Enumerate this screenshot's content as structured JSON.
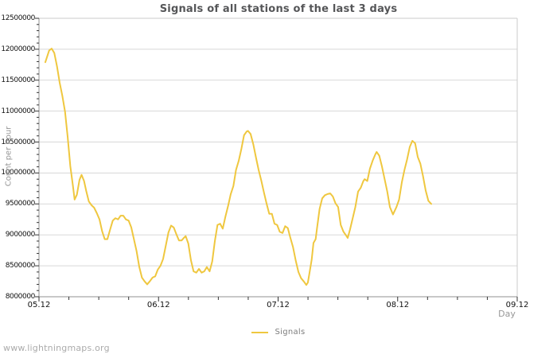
{
  "title": "Signals of all stations of the last 3 days",
  "watermark": "www.lightningmaps.org",
  "legend": {
    "label": "Signals"
  },
  "colors": {
    "series": "#EFC73F",
    "grid": "#d8d8d8",
    "axis_dark": "#909090",
    "axis_light": "#cbcbcb",
    "tick": "#333333",
    "title_text": "#555658",
    "muted_text": "#979797",
    "watermark_text": "#ababab"
  },
  "chart_data": {
    "type": "line",
    "title": "Signals of all stations of the last 3 days",
    "xlabel": "Day",
    "ylabel": "Count per hour",
    "legend_position": "bottom-center",
    "grid": "horizontal-only",
    "ylim": [
      8000000,
      12500000
    ],
    "y_major_step": 500000,
    "y_minor_step": 100000,
    "y_tick_labels": [
      "8000000",
      "8500000",
      "9000000",
      "9500000",
      "10000000",
      "10500000",
      "11000000",
      "11500000",
      "12000000",
      "12500000"
    ],
    "xlim_days": [
      0,
      4
    ],
    "x_major_step": 1,
    "x_minor_step": 0.25,
    "x_tick_labels": [
      "05.12",
      "06.12",
      "07.12",
      "08.12",
      "09.12"
    ],
    "series": [
      {
        "name": "Signals",
        "color": "#EFC73F",
        "points": [
          [
            0.053,
            11790000
          ],
          [
            0.085,
            11980000
          ],
          [
            0.106,
            12010000
          ],
          [
            0.128,
            11940000
          ],
          [
            0.151,
            11720000
          ],
          [
            0.173,
            11460000
          ],
          [
            0.195,
            11250000
          ],
          [
            0.218,
            10990000
          ],
          [
            0.24,
            10580000
          ],
          [
            0.262,
            10110000
          ],
          [
            0.284,
            9790000
          ],
          [
            0.298,
            9570000
          ],
          [
            0.317,
            9650000
          ],
          [
            0.339,
            9890000
          ],
          [
            0.356,
            9970000
          ],
          [
            0.377,
            9870000
          ],
          [
            0.395,
            9710000
          ],
          [
            0.417,
            9540000
          ],
          [
            0.439,
            9480000
          ],
          [
            0.461,
            9440000
          ],
          [
            0.484,
            9350000
          ],
          [
            0.506,
            9250000
          ],
          [
            0.528,
            9060000
          ],
          [
            0.55,
            8930000
          ],
          [
            0.572,
            8930000
          ],
          [
            0.594,
            9080000
          ],
          [
            0.617,
            9230000
          ],
          [
            0.639,
            9270000
          ],
          [
            0.661,
            9250000
          ],
          [
            0.683,
            9310000
          ],
          [
            0.705,
            9310000
          ],
          [
            0.727,
            9250000
          ],
          [
            0.75,
            9230000
          ],
          [
            0.772,
            9120000
          ],
          [
            0.794,
            8930000
          ],
          [
            0.816,
            8740000
          ],
          [
            0.839,
            8480000
          ],
          [
            0.861,
            8310000
          ],
          [
            0.883,
            8250000
          ],
          [
            0.905,
            8200000
          ],
          [
            0.927,
            8250000
          ],
          [
            0.95,
            8310000
          ],
          [
            0.972,
            8330000
          ],
          [
            0.994,
            8440000
          ],
          [
            1.016,
            8500000
          ],
          [
            1.038,
            8610000
          ],
          [
            1.06,
            8820000
          ],
          [
            1.083,
            9040000
          ],
          [
            1.105,
            9150000
          ],
          [
            1.127,
            9120000
          ],
          [
            1.149,
            9010000
          ],
          [
            1.171,
            8910000
          ],
          [
            1.193,
            8910000
          ],
          [
            1.216,
            8960000
          ],
          [
            1.227,
            8980000
          ],
          [
            1.249,
            8860000
          ],
          [
            1.271,
            8590000
          ],
          [
            1.293,
            8410000
          ],
          [
            1.316,
            8390000
          ],
          [
            1.338,
            8450000
          ],
          [
            1.36,
            8390000
          ],
          [
            1.382,
            8410000
          ],
          [
            1.404,
            8480000
          ],
          [
            1.427,
            8410000
          ],
          [
            1.449,
            8570000
          ],
          [
            1.471,
            8900000
          ],
          [
            1.493,
            9160000
          ],
          [
            1.515,
            9180000
          ],
          [
            1.537,
            9100000
          ],
          [
            1.56,
            9300000
          ],
          [
            1.582,
            9470000
          ],
          [
            1.604,
            9660000
          ],
          [
            1.626,
            9790000
          ],
          [
            1.648,
            10050000
          ],
          [
            1.671,
            10200000
          ],
          [
            1.693,
            10390000
          ],
          [
            1.715,
            10610000
          ],
          [
            1.737,
            10670000
          ],
          [
            1.748,
            10680000
          ],
          [
            1.77,
            10630000
          ],
          [
            1.793,
            10460000
          ],
          [
            1.815,
            10250000
          ],
          [
            1.837,
            10050000
          ],
          [
            1.859,
            9880000
          ],
          [
            1.881,
            9690000
          ],
          [
            1.903,
            9510000
          ],
          [
            1.926,
            9340000
          ],
          [
            1.948,
            9340000
          ],
          [
            1.97,
            9180000
          ],
          [
            1.992,
            9160000
          ],
          [
            2.014,
            9050000
          ],
          [
            2.037,
            9030000
          ],
          [
            2.059,
            9140000
          ],
          [
            2.081,
            9110000
          ],
          [
            2.103,
            8950000
          ],
          [
            2.125,
            8800000
          ],
          [
            2.148,
            8580000
          ],
          [
            2.17,
            8400000
          ],
          [
            2.192,
            8300000
          ],
          [
            2.214,
            8250000
          ],
          [
            2.236,
            8190000
          ],
          [
            2.249,
            8230000
          ],
          [
            2.263,
            8390000
          ],
          [
            2.281,
            8600000
          ],
          [
            2.296,
            8870000
          ],
          [
            2.314,
            8930000
          ],
          [
            2.325,
            9100000
          ],
          [
            2.347,
            9420000
          ],
          [
            2.369,
            9590000
          ],
          [
            2.391,
            9640000
          ],
          [
            2.414,
            9660000
          ],
          [
            2.436,
            9670000
          ],
          [
            2.458,
            9620000
          ],
          [
            2.48,
            9510000
          ],
          [
            2.502,
            9450000
          ],
          [
            2.524,
            9160000
          ],
          [
            2.547,
            9050000
          ],
          [
            2.569,
            8990000
          ],
          [
            2.582,
            8950000
          ],
          [
            2.602,
            9090000
          ],
          [
            2.624,
            9270000
          ],
          [
            2.646,
            9450000
          ],
          [
            2.669,
            9700000
          ],
          [
            2.691,
            9760000
          ],
          [
            2.713,
            9870000
          ],
          [
            2.724,
            9900000
          ],
          [
            2.746,
            9870000
          ],
          [
            2.768,
            10070000
          ],
          [
            2.791,
            10200000
          ],
          [
            2.813,
            10300000
          ],
          [
            2.824,
            10340000
          ],
          [
            2.846,
            10280000
          ],
          [
            2.868,
            10110000
          ],
          [
            2.89,
            9910000
          ],
          [
            2.913,
            9700000
          ],
          [
            2.935,
            9450000
          ],
          [
            2.961,
            9330000
          ],
          [
            2.99,
            9450000
          ],
          [
            3.012,
            9570000
          ],
          [
            3.035,
            9850000
          ],
          [
            3.057,
            10050000
          ],
          [
            3.079,
            10220000
          ],
          [
            3.101,
            10420000
          ],
          [
            3.123,
            10520000
          ],
          [
            3.146,
            10480000
          ],
          [
            3.168,
            10260000
          ],
          [
            3.19,
            10150000
          ],
          [
            3.212,
            9950000
          ],
          [
            3.234,
            9720000
          ],
          [
            3.257,
            9550000
          ],
          [
            3.281,
            9500000
          ]
        ]
      }
    ]
  }
}
